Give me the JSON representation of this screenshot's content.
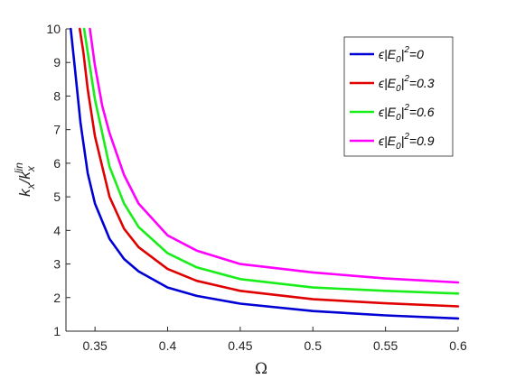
{
  "chart_data": {
    "type": "line",
    "xlabel": "Ω",
    "ylabel": {
      "main": "k",
      "sub1": "x",
      "sep": "/k",
      "sub2": "x",
      "sup": "lin"
    },
    "xlim": [
      0.33,
      0.6
    ],
    "ylim": [
      1,
      10
    ],
    "xticks": [
      "0.35",
      "0.4",
      "0.45",
      "0.5",
      "0.55",
      "0.6"
    ],
    "yticks": [
      "1",
      "2",
      "3",
      "4",
      "5",
      "6",
      "7",
      "8",
      "9",
      "10"
    ],
    "legend_position": "top-right",
    "grid": false,
    "series": [
      {
        "name": "ϵ|E0|²=0",
        "label_value": "0",
        "color": "#0000d4",
        "x": [
          0.3333,
          0.336,
          0.34,
          0.345,
          0.35,
          0.36,
          0.37,
          0.38,
          0.4,
          0.42,
          0.45,
          0.5,
          0.55,
          0.6
        ],
        "y": [
          10,
          8.9,
          7.2,
          5.7,
          4.8,
          3.75,
          3.15,
          2.78,
          2.3,
          2.05,
          1.82,
          1.6,
          1.47,
          1.38
        ]
      },
      {
        "name": "ϵ|E0|²=0.3",
        "label_value": "0.3",
        "color": "#e00000",
        "x": [
          0.3395,
          0.342,
          0.345,
          0.35,
          0.36,
          0.37,
          0.38,
          0.4,
          0.42,
          0.45,
          0.5,
          0.55,
          0.6
        ],
        "y": [
          10,
          9.3,
          8.2,
          6.8,
          5.0,
          4.05,
          3.5,
          2.85,
          2.5,
          2.2,
          1.95,
          1.83,
          1.74
        ]
      },
      {
        "name": "ϵ|E0|²=0.6",
        "label_value": "0.6",
        "color": "#1aee1a",
        "x": [
          0.3425,
          0.345,
          0.35,
          0.36,
          0.37,
          0.38,
          0.4,
          0.42,
          0.45,
          0.5,
          0.55,
          0.6
        ],
        "y": [
          10,
          9.3,
          7.9,
          5.9,
          4.8,
          4.1,
          3.32,
          2.9,
          2.55,
          2.3,
          2.2,
          2.12
        ]
      },
      {
        "name": "ϵ|E0|²=0.9",
        "label_value": "0.9",
        "color": "#ff00ff",
        "x": [
          0.3465,
          0.35,
          0.355,
          0.36,
          0.37,
          0.38,
          0.4,
          0.42,
          0.45,
          0.5,
          0.55,
          0.6
        ],
        "y": [
          10,
          8.9,
          7.7,
          6.9,
          5.65,
          4.8,
          3.85,
          3.4,
          3.0,
          2.75,
          2.57,
          2.45
        ]
      }
    ]
  }
}
